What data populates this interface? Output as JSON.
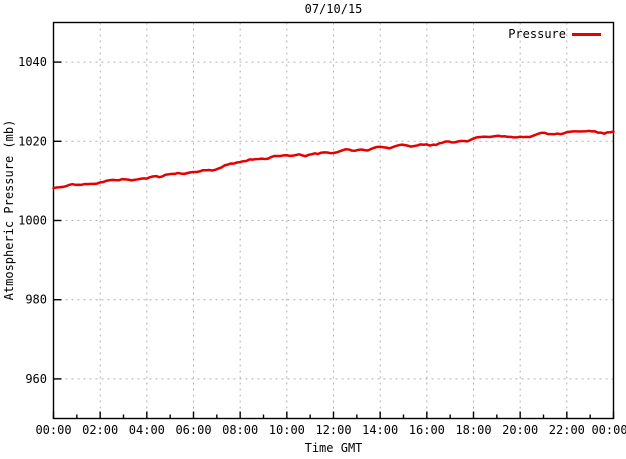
{
  "colors": {
    "background": "#ffffff",
    "plot_border": "#000000",
    "grid": "#b0b0b0",
    "text": "#000000",
    "series_red": "#e60000"
  },
  "chart_data": {
    "type": "line",
    "title": "07/10/15",
    "xlabel": "Time GMT",
    "ylabel": "Atmospheric Pressure (mb)",
    "ylim": [
      950,
      1050
    ],
    "y_ticks": [
      960,
      980,
      1000,
      1020,
      1040
    ],
    "x_hours_range": [
      0,
      24
    ],
    "x_major_tick_hours": 2,
    "x_minor_tick_hours": 1,
    "x_tick_labels": [
      "00:00",
      "02:00",
      "04:00",
      "06:00",
      "08:00",
      "10:00",
      "12:00",
      "14:00",
      "16:00",
      "18:00",
      "20:00",
      "22:00",
      "00:00"
    ],
    "grid": "dashed-at-major-ticks",
    "legend_position": "top-right-inside",
    "series": [
      {
        "name": "Pressure",
        "color": "#e60000",
        "x_hours": [
          0,
          1,
          2,
          3,
          4,
          5,
          6,
          7,
          8,
          9,
          10,
          11,
          12,
          13,
          14,
          15,
          16,
          17,
          18,
          19,
          20,
          21,
          22,
          23,
          24
        ],
        "values": [
          1008.4,
          1009.0,
          1009.8,
          1010.3,
          1010.9,
          1011.6,
          1012.2,
          1013.2,
          1014.8,
          1015.6,
          1016.2,
          1016.8,
          1017.4,
          1017.8,
          1018.3,
          1018.8,
          1019.0,
          1019.7,
          1020.4,
          1021.0,
          1021.4,
          1021.8,
          1022.1,
          1022.3,
          1021.9
        ],
        "noise_mb": 0.3
      }
    ]
  }
}
